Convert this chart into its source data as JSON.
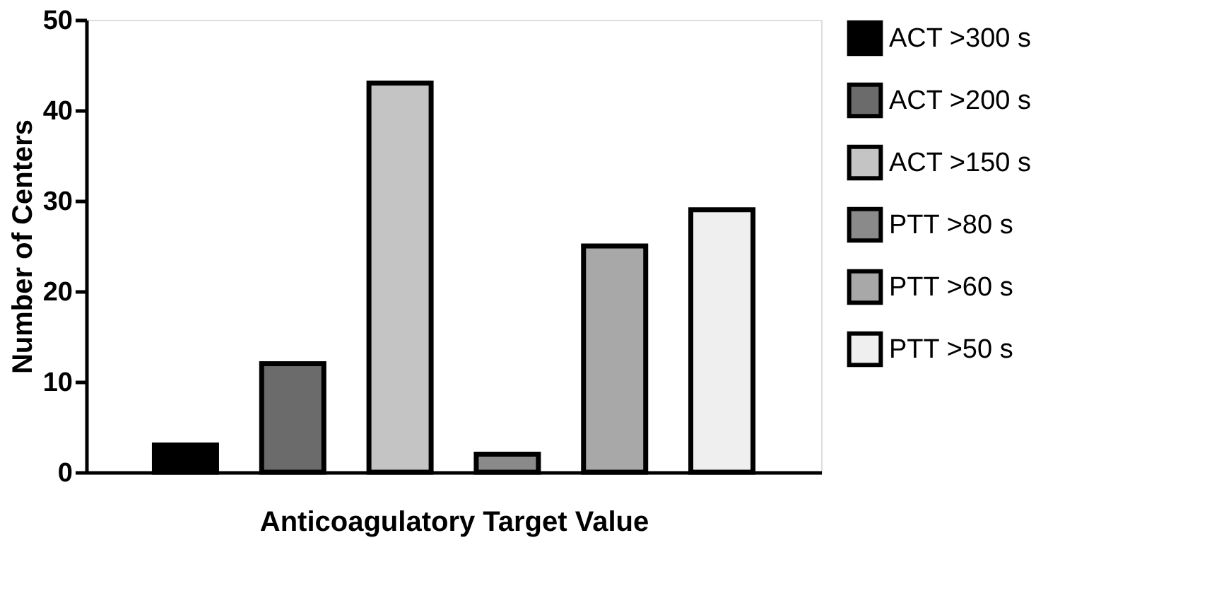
{
  "chart_data": {
    "type": "bar",
    "xlabel": "Anticoagulatory Target Value",
    "ylabel": "Number of Centers",
    "categories": [
      null,
      null,
      null,
      null,
      null,
      null
    ],
    "ylim": [
      0,
      50
    ],
    "yticks": [
      0,
      10,
      20,
      30,
      40,
      50
    ],
    "grid": false,
    "legend": "right",
    "series": [
      {
        "name": "ACT >300 s",
        "color": "#000000",
        "values": [
          3,
          null,
          null,
          null,
          null,
          null
        ]
      },
      {
        "name": "ACT >200 s",
        "color": "#6b6b6b",
        "values": [
          null,
          12,
          null,
          null,
          null,
          null
        ]
      },
      {
        "name": "ACT >150 s",
        "color": "#c4c4c4",
        "values": [
          null,
          null,
          43,
          null,
          null,
          null
        ]
      },
      {
        "name": "PTT >80 s",
        "color": "#8a8a8a",
        "values": [
          null,
          null,
          null,
          2,
          null,
          null
        ]
      },
      {
        "name": "PTT >60 s",
        "color": "#a8a8a8",
        "values": [
          null,
          null,
          null,
          null,
          25,
          null
        ]
      },
      {
        "name": "PTT >50 s",
        "color": "#efefef",
        "values": [
          null,
          null,
          null,
          null,
          null,
          29
        ]
      }
    ]
  }
}
